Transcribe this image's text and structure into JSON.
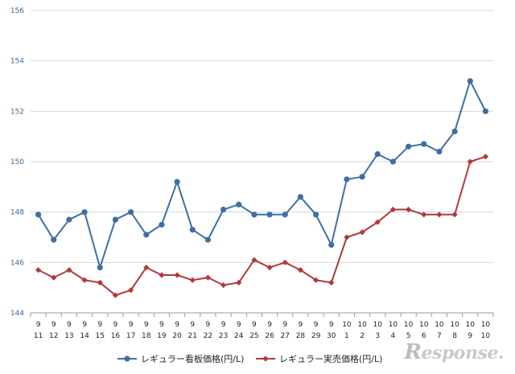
{
  "chart_data": {
    "type": "line",
    "title": "",
    "xlabel": "",
    "ylabel": "",
    "ylim": [
      144,
      156
    ],
    "yticks": [
      "144",
      "146",
      "148",
      "150",
      "152",
      "154",
      "156"
    ],
    "grid": "horizontal",
    "legend_position": "bottom",
    "categories": [
      [
        "9",
        "11"
      ],
      [
        "9",
        "12"
      ],
      [
        "9",
        "13"
      ],
      [
        "9",
        "14"
      ],
      [
        "9",
        "15"
      ],
      [
        "9",
        "16"
      ],
      [
        "9",
        "17"
      ],
      [
        "9",
        "18"
      ],
      [
        "9",
        "19"
      ],
      [
        "9",
        "20"
      ],
      [
        "9",
        "21"
      ],
      [
        "9",
        "22"
      ],
      [
        "9",
        "23"
      ],
      [
        "9",
        "24"
      ],
      [
        "9",
        "25"
      ],
      [
        "9",
        "26"
      ],
      [
        "9",
        "27"
      ],
      [
        "9",
        "28"
      ],
      [
        "9",
        "29"
      ],
      [
        "9",
        "30"
      ],
      [
        "10",
        "1"
      ],
      [
        "10",
        "2"
      ],
      [
        "10",
        "3"
      ],
      [
        "10",
        "4"
      ],
      [
        "10",
        "5"
      ],
      [
        "10",
        "6"
      ],
      [
        "10",
        "7"
      ],
      [
        "10",
        "8"
      ],
      [
        "10",
        "9"
      ],
      [
        "10",
        "10"
      ]
    ],
    "series": [
      {
        "name": "レギュラー看板価格(円/L)",
        "color": "#3d6fa6",
        "marker": "circle",
        "values": [
          147.9,
          146.9,
          147.7,
          148.0,
          145.8,
          147.7,
          148.0,
          147.1,
          147.5,
          149.2,
          147.3,
          146.9,
          148.1,
          148.3,
          147.9,
          147.9,
          147.9,
          148.6,
          147.9,
          146.7,
          149.3,
          149.4,
          150.3,
          150.0,
          150.6,
          150.7,
          150.4,
          151.2,
          153.2,
          152.0
        ]
      },
      {
        "name": "レギュラー実売価格(円/L)",
        "color": "#b03a3a",
        "marker": "diamond",
        "values": [
          145.7,
          145.4,
          145.7,
          145.3,
          145.2,
          144.7,
          144.9,
          145.8,
          145.5,
          145.5,
          145.3,
          145.4,
          145.1,
          145.2,
          146.1,
          145.8,
          146.0,
          145.7,
          145.3,
          145.2,
          147.0,
          147.2,
          147.6,
          148.1,
          148.1,
          147.9,
          147.9,
          147.9,
          150.0,
          150.2
        ]
      }
    ]
  },
  "watermark": "Response."
}
